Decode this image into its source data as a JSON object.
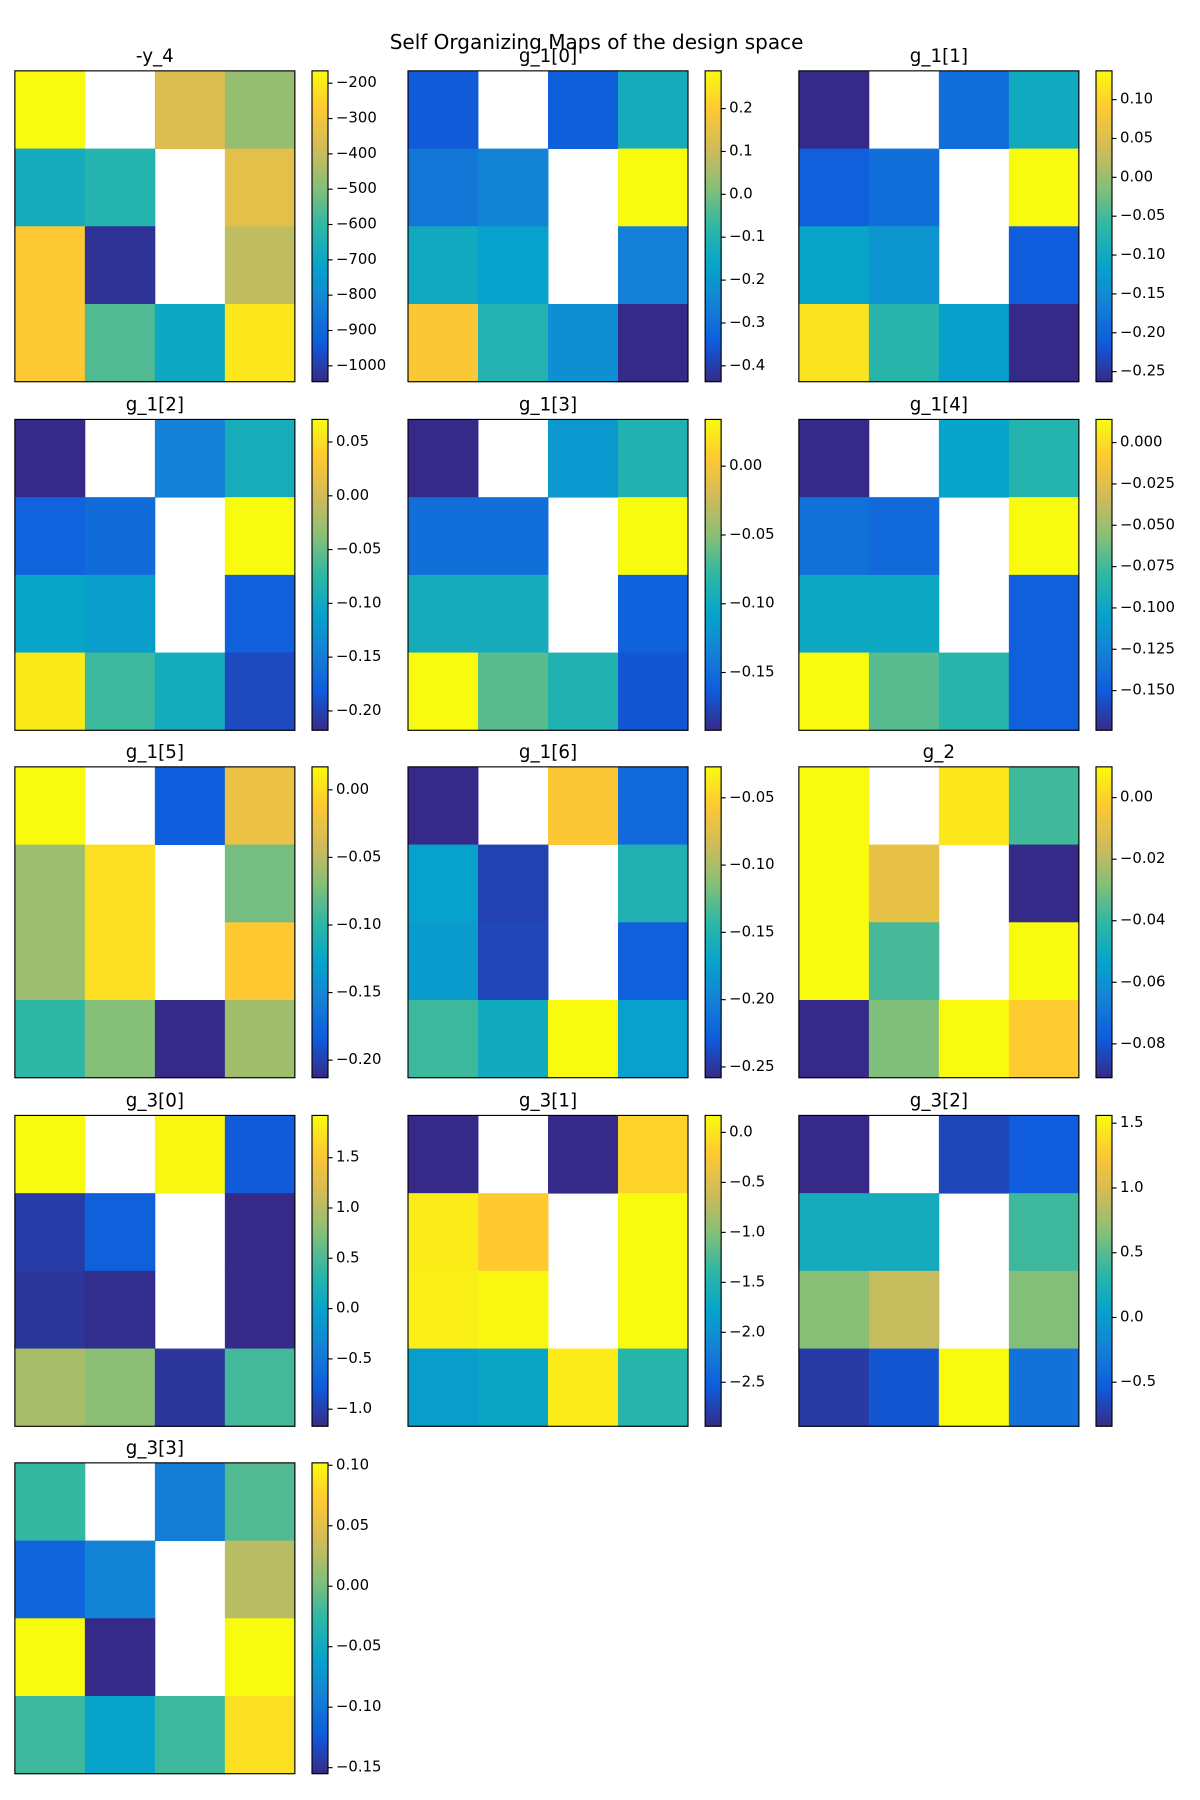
{
  "title": "Self Organizing Maps of the design space",
  "colormap": [
    "#352a87",
    "#0f5cdd",
    "#1481d6",
    "#06a4ca",
    "#2eb7a4",
    "#87bf77",
    "#d1bb59",
    "#fec832",
    "#f9fb0e"
  ],
  "chart_data": [
    {
      "type": "heatmap",
      "title": "-y_4",
      "zlim": [
        -1045,
        -165
      ],
      "zticks": [
        {
          "value": -200,
          "label": "−200"
        },
        {
          "value": -300,
          "label": "−300"
        },
        {
          "value": -400,
          "label": "−400"
        },
        {
          "value": -500,
          "label": "−500"
        },
        {
          "value": -600,
          "label": "−600"
        },
        {
          "value": -700,
          "label": "−700"
        },
        {
          "value": -800,
          "label": "−800"
        },
        {
          "value": -900,
          "label": "−900"
        },
        {
          "value": -1000,
          "label": "−1000"
        }
      ],
      "values": [
        [
          -165,
          null,
          -359,
          -473
        ],
        [
          -675,
          -631,
          null,
          -341
        ],
        [
          -279,
          -1027,
          null,
          -411
        ],
        [
          -279,
          -561,
          -693,
          -209
        ]
      ]
    },
    {
      "type": "heatmap",
      "title": "g_1[0]",
      "zlim": [
        -0.437,
        0.288
      ],
      "zticks": [
        0.2,
        0.1,
        {
          "value": 0,
          "label": "0.0"
        },
        {
          "value": -0.1,
          "label": "−0.1"
        },
        {
          "value": -0.2,
          "label": "−0.2"
        },
        {
          "value": -0.3,
          "label": "−0.3"
        },
        {
          "value": -0.4,
          "label": "−0.4"
        }
      ],
      "values": [
        [
          -0.35,
          null,
          -0.34,
          -0.13
        ],
        [
          -0.28,
          -0.25,
          null,
          0.288
        ],
        [
          -0.14,
          -0.17,
          null,
          -0.26
        ],
        [
          0.19,
          -0.1,
          -0.22,
          -0.437
        ]
      ]
    },
    {
      "type": "heatmap",
      "title": "g_1[1]",
      "zlim": [
        -0.263,
        0.137
      ],
      "zticks": [
        {
          "value": 0.1,
          "label": "0.10"
        },
        0.05,
        {
          "value": 0,
          "label": "0.00"
        },
        {
          "value": -0.05,
          "label": "−0.05"
        },
        {
          "value": -0.1,
          "label": "−0.10"
        },
        {
          "value": -0.15,
          "label": "−0.15"
        },
        {
          "value": -0.2,
          "label": "−0.20"
        },
        {
          "value": -0.25,
          "label": "−0.25"
        }
      ],
      "values": [
        [
          -0.263,
          null,
          -0.19,
          -0.1
        ],
        [
          -0.207,
          -0.187,
          null,
          0.137
        ],
        [
          -0.111,
          -0.135,
          null,
          -0.211
        ],
        [
          0.113,
          -0.071,
          -0.119,
          -0.263
        ]
      ]
    },
    {
      "type": "heatmap",
      "title": "g_1[2]",
      "zlim": [
        -0.218,
        0.071
      ],
      "zticks": [
        0.05,
        {
          "value": 0,
          "label": "0.00"
        },
        {
          "value": -0.05,
          "label": "−0.05"
        },
        {
          "value": -0.1,
          "label": "−0.10"
        },
        {
          "value": -0.15,
          "label": "−0.15"
        },
        {
          "value": -0.2,
          "label": "−0.20"
        }
      ],
      "values": [
        [
          -0.218,
          null,
          -0.146,
          -0.094
        ],
        [
          -0.175,
          -0.166,
          null,
          0.071
        ],
        [
          -0.108,
          -0.117,
          null,
          -0.178
        ],
        [
          0.059,
          -0.068,
          -0.097,
          -0.195
        ]
      ]
    },
    {
      "type": "heatmap",
      "title": "g_1[3]",
      "zlim": [
        -0.192,
        0.034
      ],
      "zticks": [
        {
          "value": 0,
          "label": "0.00"
        },
        {
          "value": -0.05,
          "label": "−0.05"
        },
        {
          "value": -0.1,
          "label": "−0.10"
        },
        {
          "value": -0.15,
          "label": "−0.15"
        }
      ],
      "values": [
        [
          -0.192,
          null,
          -0.117,
          -0.088
        ],
        [
          -0.149,
          -0.149,
          null,
          0.034
        ],
        [
          -0.097,
          -0.097,
          null,
          -0.16
        ],
        [
          0.034,
          -0.065,
          -0.088,
          -0.167
        ]
      ]
    },
    {
      "type": "heatmap",
      "title": "g_1[4]",
      "zlim": [
        -0.174,
        0.014
      ],
      "zticks": [
        {
          "value": 0,
          "label": "0.000"
        },
        {
          "value": -0.025,
          "label": "−0.025"
        },
        {
          "value": -0.05,
          "label": "−0.050"
        },
        {
          "value": -0.075,
          "label": "−0.075"
        },
        {
          "value": -0.1,
          "label": "−0.100"
        },
        {
          "value": -0.125,
          "label": "−0.125"
        },
        {
          "value": -0.15,
          "label": "−0.150"
        }
      ],
      "values": [
        [
          -0.174,
          null,
          -0.103,
          -0.086
        ],
        [
          -0.138,
          -0.142,
          null,
          0.014
        ],
        [
          -0.099,
          -0.099,
          null,
          -0.148
        ],
        [
          0.014,
          -0.069,
          -0.084,
          -0.148
        ]
      ]
    },
    {
      "type": "heatmap",
      "title": "g_1[5]",
      "zlim": [
        -0.213,
        0.017
      ],
      "zticks": [
        {
          "value": 0,
          "label": "0.00"
        },
        {
          "value": -0.05,
          "label": "−0.05"
        },
        {
          "value": -0.1,
          "label": "−0.10"
        },
        {
          "value": -0.15,
          "label": "−0.15"
        },
        {
          "value": -0.2,
          "label": "−0.20"
        }
      ],
      "values": [
        [
          0.017,
          null,
          -0.183,
          -0.024
        ],
        [
          -0.061,
          0.001,
          null,
          -0.075
        ],
        [
          -0.061,
          0.001,
          null,
          -0.011
        ],
        [
          -0.098,
          -0.07,
          -0.213,
          -0.059
        ]
      ]
    },
    {
      "type": "heatmap",
      "title": "g_1[6]",
      "zlim": [
        -0.258,
        -0.027
      ],
      "zticks": [
        {
          "value": -0.05,
          "label": "−0.05"
        },
        {
          "value": -0.1,
          "label": "−0.10"
        },
        {
          "value": -0.15,
          "label": "−0.15"
        },
        {
          "value": -0.2,
          "label": "−0.20"
        },
        {
          "value": -0.25,
          "label": "−0.25"
        }
      ],
      "values": [
        [
          -0.258,
          null,
          -0.057,
          -0.219
        ],
        [
          -0.173,
          -0.244,
          null,
          -0.152
        ],
        [
          -0.179,
          -0.242,
          null,
          -0.226
        ],
        [
          -0.138,
          -0.163,
          -0.027,
          -0.175
        ]
      ]
    },
    {
      "type": "heatmap",
      "title": "g_2",
      "zlim": [
        -0.091,
        0.01
      ],
      "zticks": [
        {
          "value": 0,
          "label": "0.00"
        },
        {
          "value": -0.02,
          "label": "−0.02"
        },
        {
          "value": -0.04,
          "label": "−0.04"
        },
        {
          "value": -0.06,
          "label": "−0.06"
        },
        {
          "value": -0.08,
          "label": "−0.08"
        }
      ],
      "values": [
        [
          0.01,
          null,
          0.005,
          -0.038
        ],
        [
          0.01,
          -0.009,
          null,
          -0.091
        ],
        [
          0.01,
          -0.037,
          null,
          0.01
        ],
        [
          -0.091,
          -0.029,
          0.01,
          -0.002
        ]
      ]
    },
    {
      "type": "heatmap",
      "title": "g_3[0]",
      "zlim": [
        -1.17,
        1.92
      ],
      "zticks": [
        1.5,
        {
          "value": 1,
          "label": "1.0"
        },
        0.5,
        {
          "value": 0,
          "label": "0.0"
        },
        {
          "value": -0.5,
          "label": "−0.5"
        },
        {
          "value": -1,
          "label": "−1.0"
        }
      ],
      "values": [
        [
          1.92,
          null,
          1.89,
          -0.8
        ],
        [
          -1.02,
          -0.74,
          null,
          -1.17
        ],
        [
          -1.08,
          -1.14,
          null,
          -1.17
        ],
        [
          0.93,
          0.78,
          -1.08,
          0.47
        ]
      ]
    },
    {
      "type": "heatmap",
      "title": "g_3[1]",
      "zlim": [
        -2.94,
        0.17
      ],
      "zticks": [
        {
          "value": 0,
          "label": "0.0"
        },
        {
          "value": -0.5,
          "label": "−0.5"
        },
        {
          "value": -1,
          "label": "−1.0"
        },
        {
          "value": -1.5,
          "label": "−1.5"
        },
        {
          "value": -2,
          "label": "−2.0"
        },
        {
          "value": -2.5,
          "label": "−2.5"
        }
      ],
      "values": [
        [
          -2.94,
          null,
          -2.94,
          -0.14
        ],
        [
          0.05,
          -0.2,
          null,
          0.17
        ],
        [
          0.08,
          0.14,
          null,
          0.17
        ],
        [
          -1.85,
          -1.73,
          0.05,
          -1.45
        ]
      ]
    },
    {
      "type": "heatmap",
      "title": "g_3[2]",
      "zlim": [
        -0.84,
        1.56
      ],
      "zticks": [
        1.5,
        {
          "value": 1,
          "label": "1.0"
        },
        0.5,
        {
          "value": 0,
          "label": "0.0"
        },
        {
          "value": -0.5,
          "label": "−0.5"
        }
      ],
      "values": [
        [
          -0.84,
          null,
          -0.67,
          -0.53
        ],
        [
          0.17,
          0.17,
          null,
          0.41
        ],
        [
          0.67,
          0.91,
          null,
          0.65
        ],
        [
          -0.74,
          -0.58,
          1.56,
          -0.36
        ]
      ]
    },
    {
      "type": "heatmap",
      "title": "g_3[3]",
      "zlim": [
        -0.155,
        0.102
      ],
      "zticks": [
        {
          "value": 0.1,
          "label": "0.10"
        },
        0.05,
        {
          "value": 0,
          "label": "0.00"
        },
        {
          "value": -0.05,
          "label": "−0.05"
        },
        {
          "value": -0.1,
          "label": "−0.10"
        },
        {
          "value": -0.15,
          "label": "−0.15"
        }
      ],
      "values": [
        [
          -0.024,
          null,
          -0.093,
          -0.014
        ],
        [
          -0.116,
          -0.088,
          null,
          0.027
        ],
        [
          0.102,
          -0.155,
          null,
          0.102
        ],
        [
          -0.021,
          -0.06,
          -0.021,
          0.084
        ]
      ]
    }
  ]
}
